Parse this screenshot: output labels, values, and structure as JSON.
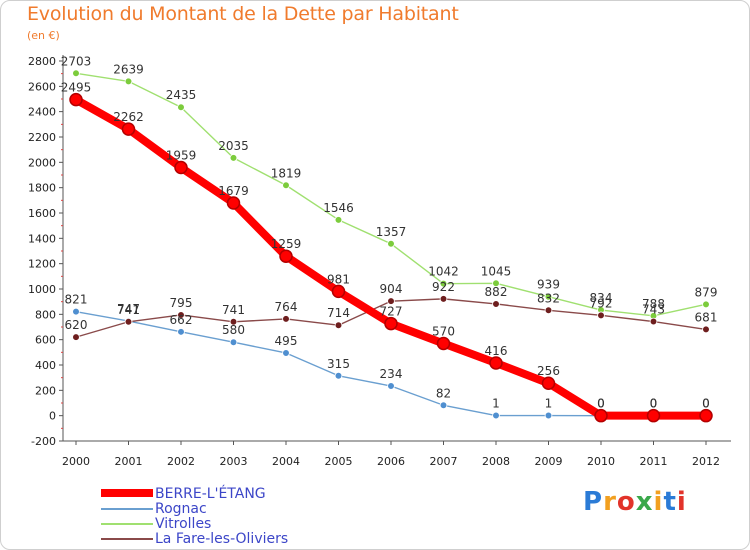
{
  "title": "Evolution du Montant de la Dette par Habitant",
  "subtitle": "(en €)",
  "logo": "Proxiti",
  "chart_data": {
    "type": "line",
    "title": "Evolution du Montant de la Dette par Habitant",
    "subtitle": "(en €)",
    "x": [
      2000,
      2001,
      2002,
      2003,
      2004,
      2005,
      2006,
      2007,
      2008,
      2009,
      2010,
      2011,
      2012
    ],
    "ylim": [
      -200,
      2800
    ],
    "yticks": [
      -200,
      0,
      200,
      400,
      600,
      800,
      1000,
      1200,
      1400,
      1600,
      1800,
      2000,
      2200,
      2400,
      2600,
      2800
    ],
    "grid": false,
    "legend_position": "bottom-left",
    "series": [
      {
        "name": "BERRE-L'ÉTANG",
        "color": "#ff0000",
        "marker_color": "#cc0000",
        "thick": true,
        "values": [
          2495,
          2262,
          1959,
          1679,
          1259,
          981,
          727,
          570,
          416,
          256,
          0,
          0,
          0
        ]
      },
      {
        "name": "Rognac",
        "color": "#6a9fd0",
        "marker_color": "#4f8fd0",
        "values": [
          821,
          747,
          662,
          580,
          495,
          315,
          234,
          82,
          1,
          1,
          0,
          0,
          0
        ]
      },
      {
        "name": "Vitrolles",
        "color": "#a0e070",
        "marker_color": "#7ccc3c",
        "values": [
          2703,
          2639,
          2435,
          2035,
          1819,
          1546,
          1357,
          1042,
          1045,
          939,
          834,
          788,
          879
        ]
      },
      {
        "name": "La Fare-les-Oliviers",
        "color": "#8a4a4a",
        "marker_color": "#6e1e1e",
        "values": [
          620,
          741,
          795,
          741,
          764,
          714,
          904,
          922,
          882,
          832,
          792,
          743,
          681
        ]
      }
    ]
  }
}
